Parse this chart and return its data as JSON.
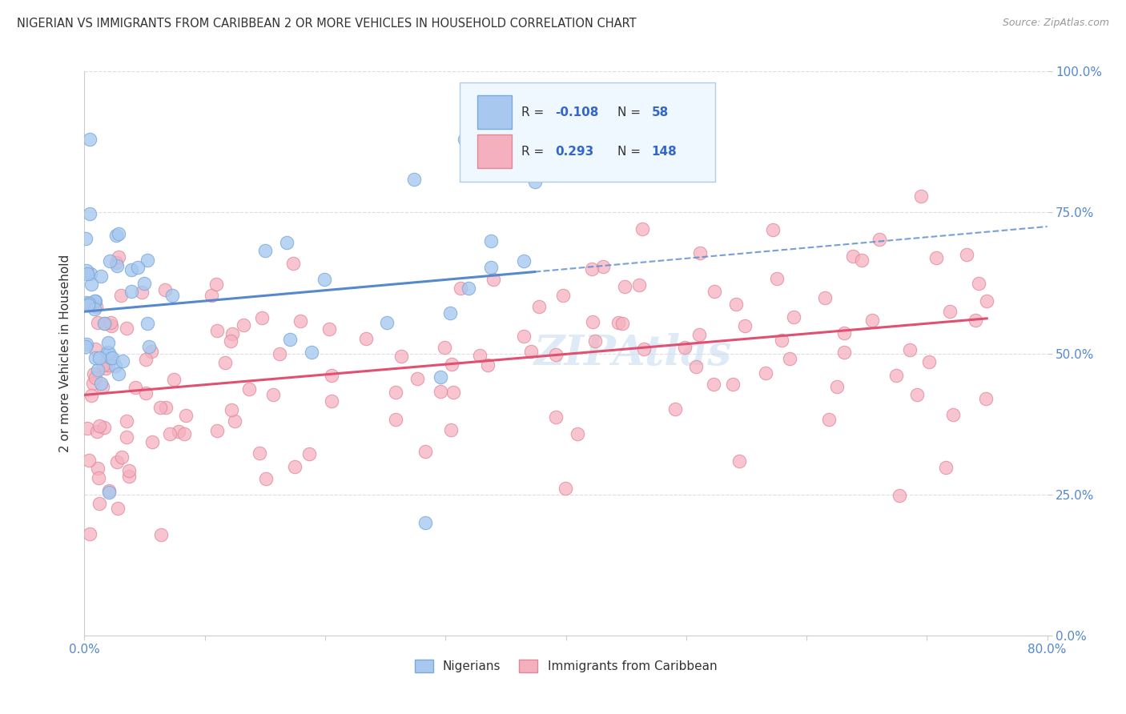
{
  "title": "NIGERIAN VS IMMIGRANTS FROM CARIBBEAN 2 OR MORE VEHICLES IN HOUSEHOLD CORRELATION CHART",
  "source": "Source: ZipAtlas.com",
  "ylabel": "2 or more Vehicles in Household",
  "y_tick_labels": [
    "0.0%",
    "25.0%",
    "50.0%",
    "75.0%",
    "100.0%"
  ],
  "y_tick_values": [
    0,
    25,
    50,
    75,
    100
  ],
  "x_range": [
    0,
    80
  ],
  "y_range": [
    0,
    100
  ],
  "series1_name": "Nigerians",
  "series1_R": -0.108,
  "series1_N": 58,
  "series1_color": "#a8c8f0",
  "series1_edge_color": "#7aaad8",
  "series1_line_color": "#5588cc",
  "series2_name": "Immigrants from Caribbean",
  "series2_R": 0.293,
  "series2_N": 148,
  "series2_color": "#f5b0c0",
  "series2_edge_color": "#e08898",
  "series2_line_color": "#e05070",
  "watermark_color": "#c8ddf0",
  "legend_bg": "#f0f8ff",
  "legend_border": "#b0cce0",
  "R_color": "#3366cc",
  "N_color": "#3366cc",
  "title_color": "#333333",
  "axis_label_color": "#5588cc",
  "grid_color": "#dddddd",
  "spine_color": "#cccccc"
}
